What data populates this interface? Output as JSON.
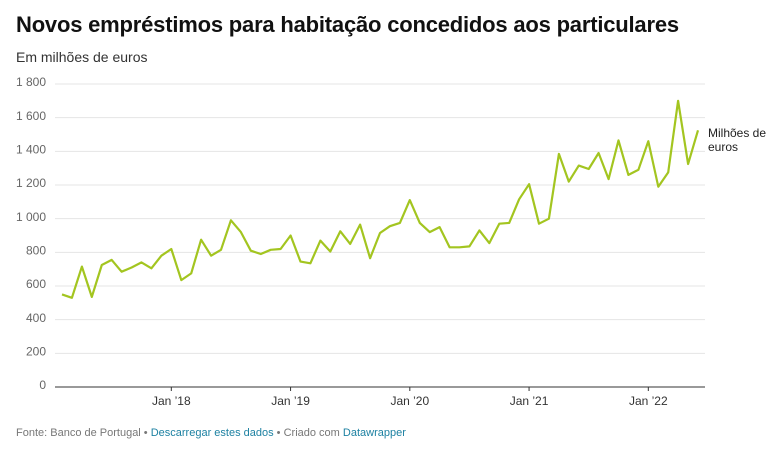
{
  "chart_data": {
    "type": "line",
    "title": "Novos empréstimos para habitação concedidos aos particulares",
    "subtitle": "Em milhões de euros",
    "annotation": "Milhões de euros",
    "source": "Fonte: Banco de Portugal",
    "download": "Descarregar estes dados",
    "credit_prefix": "Criado com",
    "credit_link": "Datawrapper",
    "categories": [
      "2017-02",
      "2017-03",
      "2017-04",
      "2017-05",
      "2017-06",
      "2017-07",
      "2017-08",
      "2017-09",
      "2017-10",
      "2017-11",
      "2017-12",
      "2018-01",
      "2018-02",
      "2018-03",
      "2018-04",
      "2018-05",
      "2018-06",
      "2018-07",
      "2018-08",
      "2018-09",
      "2018-10",
      "2018-11",
      "2018-12",
      "2019-01",
      "2019-02",
      "2019-03",
      "2019-04",
      "2019-05",
      "2019-06",
      "2019-07",
      "2019-08",
      "2019-09",
      "2019-10",
      "2019-11",
      "2019-12",
      "2020-01",
      "2020-02",
      "2020-03",
      "2020-04",
      "2020-05",
      "2020-06",
      "2020-07",
      "2020-08",
      "2020-09",
      "2020-10",
      "2020-11",
      "2020-12",
      "2021-01",
      "2021-02",
      "2021-03",
      "2021-04",
      "2021-05",
      "2021-06",
      "2021-07",
      "2021-08",
      "2021-09",
      "2021-10",
      "2021-11",
      "2021-12",
      "2022-01",
      "2022-02",
      "2022-03",
      "2022-04",
      "2022-05",
      "2022-06"
    ],
    "series": [
      {
        "name": "Milhões de euros",
        "color": "#a3c520",
        "values": [
          550,
          530,
          715,
          535,
          725,
          755,
          685,
          710,
          740,
          705,
          780,
          820,
          635,
          675,
          875,
          780,
          815,
          990,
          920,
          810,
          790,
          815,
          820,
          900,
          745,
          735,
          870,
          805,
          925,
          850,
          965,
          765,
          915,
          955,
          975,
          1110,
          975,
          920,
          950,
          830,
          830,
          835,
          930,
          855,
          970,
          975,
          1115,
          1205,
          970,
          1000,
          1385,
          1220,
          1315,
          1295,
          1390,
          1235,
          1465,
          1260,
          1290,
          1460,
          1190,
          1275,
          1700,
          1325,
          1525
        ]
      }
    ],
    "xticks": [
      {
        "value": "2018-01",
        "label": "Jan ’18"
      },
      {
        "value": "2019-01",
        "label": "Jan ’19"
      },
      {
        "value": "2020-01",
        "label": "Jan ’20"
      },
      {
        "value": "2021-01",
        "label": "Jan ’21"
      },
      {
        "value": "2022-01",
        "label": "Jan ’22"
      }
    ],
    "ylim": [
      0,
      1800
    ],
    "yticks": [
      0,
      200,
      400,
      600,
      800,
      {
        "value": 1000,
        "label": "1 000"
      },
      {
        "value": 1200,
        "label": "1 200"
      },
      {
        "value": 1400,
        "label": "1 400"
      },
      {
        "value": 1600,
        "label": "1 600"
      },
      {
        "value": 1800,
        "label": "1 800"
      }
    ],
    "grid": true
  }
}
